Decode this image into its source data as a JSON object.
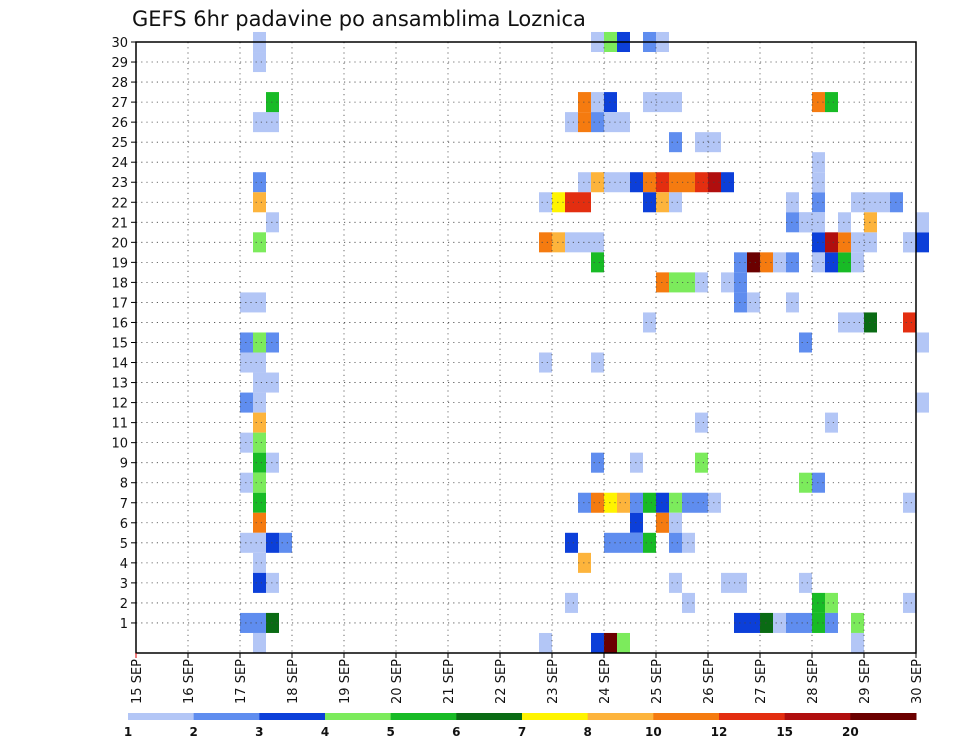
{
  "chart_data": {
    "type": "heatmap",
    "title": "GEFS 6hr padavine po ansamblima Loznica",
    "xlabel": "",
    "ylabel": "",
    "x_tick_labels": [
      "15 SEP",
      "16 SEP",
      "17 SEP",
      "18 SEP",
      "19 SEP",
      "20 SEP",
      "21 SEP",
      "22 SEP",
      "23 SEP",
      "24 SEP",
      "25 SEP",
      "26 SEP",
      "27 SEP",
      "28 SEP",
      "29 SEP",
      "30 SEP"
    ],
    "xlim": [
      0,
      60
    ],
    "ylim": [
      0,
      30
    ],
    "y_ticks": [
      1,
      2,
      3,
      4,
      5,
      6,
      7,
      8,
      9,
      10,
      11,
      12,
      13,
      14,
      15,
      16,
      17,
      18,
      19,
      20,
      21,
      22,
      23,
      24,
      25,
      26,
      27,
      28,
      29,
      30
    ],
    "grid": true,
    "colorbar": {
      "position": "bottom",
      "labels": [
        "1",
        "2",
        "3",
        "4",
        "5",
        "6",
        "7",
        "8",
        "10",
        "12",
        "15",
        "20"
      ],
      "colors": [
        "#b3c6f6",
        "#5f8def",
        "#0c3fd9",
        "#7ceb5c",
        "#18bb26",
        "#0a6b14",
        "#fff400",
        "#fdb43c",
        "#f57b10",
        "#e32e10",
        "#b00e0e",
        "#6b0000"
      ]
    },
    "cells": [
      [
        9,
        30,
        0
      ],
      [
        9,
        29,
        0
      ],
      [
        9,
        26,
        0
      ],
      [
        10,
        26,
        0
      ],
      [
        9,
        23,
        1
      ],
      [
        9,
        22,
        7
      ],
      [
        10,
        21,
        0
      ],
      [
        9,
        20,
        3
      ],
      [
        8,
        17,
        0
      ],
      [
        9,
        17,
        0
      ],
      [
        8,
        15,
        1
      ],
      [
        9,
        15,
        3
      ],
      [
        10,
        15,
        1
      ],
      [
        8,
        14,
        0
      ],
      [
        9,
        14,
        0
      ],
      [
        9,
        13,
        0
      ],
      [
        10,
        13,
        0
      ],
      [
        8,
        12,
        1
      ],
      [
        9,
        12,
        0
      ],
      [
        9,
        11,
        7
      ],
      [
        8,
        10,
        0
      ],
      [
        9,
        10,
        3
      ],
      [
        9,
        9,
        4
      ],
      [
        10,
        9,
        0
      ],
      [
        8,
        8,
        0
      ],
      [
        9,
        8,
        3
      ],
      [
        9,
        7,
        4
      ],
      [
        9,
        6,
        8
      ],
      [
        8,
        5,
        0
      ],
      [
        9,
        5,
        0
      ],
      [
        10,
        5,
        2
      ],
      [
        11,
        5,
        1
      ],
      [
        9,
        4,
        0
      ],
      [
        9,
        3,
        2
      ],
      [
        10,
        3,
        0
      ],
      [
        8,
        1,
        1
      ],
      [
        9,
        1,
        1
      ],
      [
        10,
        1,
        5
      ],
      [
        9,
        0,
        0
      ],
      [
        10,
        27,
        4
      ],
      [
        35,
        30,
        0
      ],
      [
        36,
        30,
        3
      ],
      [
        37,
        30,
        2
      ],
      [
        39,
        30,
        1
      ],
      [
        40,
        30,
        0
      ],
      [
        34,
        27,
        8
      ],
      [
        35,
        27,
        0
      ],
      [
        36,
        27,
        2
      ],
      [
        39,
        27,
        0
      ],
      [
        40,
        27,
        0
      ],
      [
        41,
        27,
        0
      ],
      [
        33,
        26,
        0
      ],
      [
        34,
        26,
        8
      ],
      [
        35,
        26,
        1
      ],
      [
        36,
        26,
        0
      ],
      [
        37,
        26,
        0
      ],
      [
        41,
        25,
        1
      ],
      [
        43,
        25,
        0
      ],
      [
        44,
        25,
        0
      ],
      [
        41,
        22,
        0
      ],
      [
        34,
        23,
        0
      ],
      [
        35,
        23,
        7
      ],
      [
        36,
        23,
        0
      ],
      [
        37,
        23,
        0
      ],
      [
        38,
        23,
        2
      ],
      [
        39,
        23,
        8
      ],
      [
        40,
        23,
        9
      ],
      [
        41,
        23,
        8
      ],
      [
        42,
        23,
        8
      ],
      [
        43,
        23,
        9
      ],
      [
        44,
        23,
        10
      ],
      [
        45,
        23,
        2
      ],
      [
        31,
        22,
        0
      ],
      [
        32,
        22,
        6
      ],
      [
        33,
        22,
        9
      ],
      [
        34,
        22,
        9
      ],
      [
        39,
        22,
        2
      ],
      [
        40,
        22,
        7
      ],
      [
        31,
        20,
        8
      ],
      [
        32,
        20,
        7
      ],
      [
        33,
        20,
        0
      ],
      [
        34,
        20,
        0
      ],
      [
        35,
        20,
        0
      ],
      [
        35,
        19,
        4
      ],
      [
        40,
        18,
        8
      ],
      [
        41,
        18,
        3
      ],
      [
        42,
        18,
        3
      ],
      [
        43,
        18,
        0
      ],
      [
        45,
        18,
        0
      ],
      [
        46,
        18,
        1
      ],
      [
        39,
        16,
        0
      ],
      [
        46,
        17,
        1
      ],
      [
        47,
        17,
        0
      ],
      [
        31,
        14,
        0
      ],
      [
        35,
        14,
        0
      ],
      [
        43,
        11,
        0
      ],
      [
        43,
        9,
        3
      ],
      [
        35,
        9,
        1
      ],
      [
        38,
        9,
        0
      ],
      [
        34,
        7,
        1
      ],
      [
        35,
        7,
        8
      ],
      [
        36,
        7,
        6
      ],
      [
        37,
        7,
        7
      ],
      [
        38,
        7,
        1
      ],
      [
        39,
        7,
        4
      ],
      [
        40,
        7,
        2
      ],
      [
        41,
        7,
        3
      ],
      [
        42,
        7,
        1
      ],
      [
        43,
        7,
        1
      ],
      [
        44,
        7,
        0
      ],
      [
        38,
        6,
        2
      ],
      [
        40,
        6,
        8
      ],
      [
        41,
        6,
        0
      ],
      [
        33,
        5,
        2
      ],
      [
        36,
        5,
        1
      ],
      [
        37,
        5,
        1
      ],
      [
        38,
        5,
        1
      ],
      [
        39,
        5,
        4
      ],
      [
        41,
        5,
        1
      ],
      [
        42,
        5,
        0
      ],
      [
        34,
        4,
        7
      ],
      [
        41,
        3,
        0
      ],
      [
        45,
        3,
        0
      ],
      [
        46,
        3,
        0
      ],
      [
        33,
        2,
        0
      ],
      [
        42,
        2,
        0
      ],
      [
        31,
        0,
        0
      ],
      [
        35,
        0,
        2
      ],
      [
        36,
        0,
        11
      ],
      [
        37,
        0,
        3
      ],
      [
        46,
        19,
        1
      ],
      [
        47,
        19,
        11
      ],
      [
        48,
        19,
        8
      ],
      [
        49,
        19,
        0
      ],
      [
        50,
        19,
        1
      ],
      [
        52,
        19,
        0
      ],
      [
        53,
        19,
        2
      ],
      [
        54,
        19,
        4
      ],
      [
        55,
        19,
        0
      ],
      [
        50,
        17,
        0
      ],
      [
        52,
        22,
        1
      ],
      [
        51,
        21,
        0
      ],
      [
        52,
        24,
        0
      ],
      [
        52,
        27,
        8
      ],
      [
        53,
        27,
        4
      ],
      [
        52,
        20,
        2
      ],
      [
        53,
        20,
        10
      ],
      [
        54,
        20,
        8
      ],
      [
        56,
        20,
        0
      ],
      [
        59,
        20,
        0
      ],
      [
        60,
        20,
        2
      ],
      [
        52,
        21,
        0
      ],
      [
        50,
        22,
        0
      ],
      [
        55,
        22,
        0
      ],
      [
        56,
        22,
        0
      ],
      [
        57,
        22,
        0
      ],
      [
        58,
        22,
        1
      ],
      [
        50,
        21,
        1
      ],
      [
        51,
        21,
        0
      ],
      [
        54,
        21,
        0
      ],
      [
        55,
        20,
        0
      ],
      [
        56,
        21,
        7
      ],
      [
        54,
        16,
        0
      ],
      [
        55,
        16,
        0
      ],
      [
        56,
        16,
        5
      ],
      [
        59,
        16,
        9
      ],
      [
        60,
        15,
        0
      ],
      [
        52,
        23,
        0
      ],
      [
        59,
        20,
        0
      ],
      [
        60,
        21,
        0
      ],
      [
        60,
        12,
        0
      ],
      [
        51,
        15,
        1
      ],
      [
        53,
        11,
        0
      ],
      [
        51,
        8,
        3
      ],
      [
        52,
        8,
        1
      ],
      [
        59,
        7,
        0
      ],
      [
        51,
        3,
        0
      ],
      [
        53,
        2,
        3
      ],
      [
        52,
        2,
        4
      ],
      [
        59,
        2,
        0
      ],
      [
        46,
        1,
        2
      ],
      [
        47,
        1,
        2
      ],
      [
        48,
        1,
        5
      ],
      [
        49,
        1,
        0
      ],
      [
        50,
        1,
        1
      ],
      [
        51,
        1,
        1
      ],
      [
        52,
        1,
        4
      ],
      [
        53,
        1,
        1
      ],
      [
        55,
        1,
        3
      ],
      [
        55,
        0,
        0
      ]
    ]
  }
}
